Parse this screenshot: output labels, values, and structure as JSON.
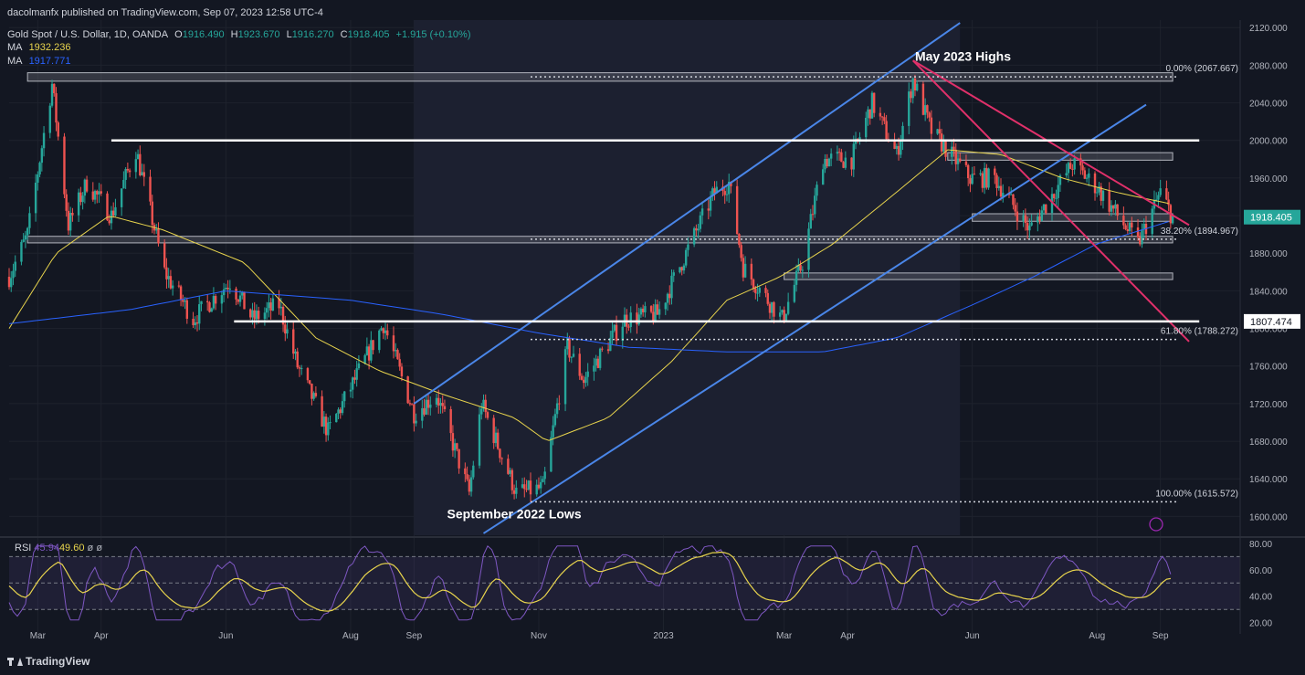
{
  "header": {
    "publisher": "dacolmanfx published on TradingView.com, Sep 07, 2023 12:58 UTC-4",
    "symbol": "Gold Spot / U.S. Dollar, 1D, OANDA",
    "o_label": "O",
    "o": "1916.490",
    "h_label": "H",
    "h": "1923.670",
    "l_label": "L",
    "l": "1916.270",
    "c_label": "C",
    "c": "1918.405",
    "change": "+1.915 (+0.10%)",
    "ma1_label": "MA",
    "ma1_value": "1932.236",
    "ma2_label": "MA",
    "ma2_value": "1917.771"
  },
  "rsi_legend": {
    "label": "RSI",
    "v1": "45.94",
    "v2": "49.60",
    "z1": "ø",
    "z2": "ø"
  },
  "brand": "TradingView",
  "colors": {
    "background": "#131722",
    "up": "#26a69a",
    "down": "#ef5350",
    "ma_fast": "#e8d44d",
    "ma_slow": "#2962ff",
    "channel": "#4a86e8",
    "trendline": "#e0306a",
    "rsi": "#7e57c2",
    "price_tag": "#26a69a",
    "grid": "#1e222d",
    "text": "#b2b5be"
  },
  "chart_data": [
    {
      "type": "candlestick",
      "title": "Gold Spot / U.S. Dollar, 1D, OANDA",
      "x_range": [
        "2022-02-15",
        "2023-10-10"
      ],
      "ylim": [
        1580,
        2128
      ],
      "y_ticks": [
        "1600.000",
        "1640.000",
        "1680.000",
        "1720.000",
        "1760.000",
        "1800.000",
        "1840.000",
        "1880.000",
        "1920.000",
        "1960.000",
        "2000.000",
        "2040.000",
        "2080.000",
        "2120.000"
      ],
      "x_ticks": [
        {
          "date": "2022-03-01",
          "label": "Mar"
        },
        {
          "date": "2022-04-01",
          "label": "Apr"
        },
        {
          "date": "2022-06-01",
          "label": "Jun"
        },
        {
          "date": "2022-08-01",
          "label": "Aug"
        },
        {
          "date": "2022-09-01",
          "label": "Sep"
        },
        {
          "date": "2022-11-01",
          "label": "Nov"
        },
        {
          "date": "2023-01-01",
          "label": "2023"
        },
        {
          "date": "2023-03-01",
          "label": "Mar"
        },
        {
          "date": "2023-04-01",
          "label": "Apr"
        },
        {
          "date": "2023-06-01",
          "label": "Jun"
        },
        {
          "date": "2023-08-01",
          "label": "Aug"
        },
        {
          "date": "2023-09-01",
          "label": "Sep"
        }
      ],
      "price_path": [
        [
          "2022-02-15",
          1855
        ],
        [
          "2022-02-24",
          1900
        ],
        [
          "2022-03-08",
          2060
        ],
        [
          "2022-03-16",
          1910
        ],
        [
          "2022-03-25",
          1955
        ],
        [
          "2022-04-06",
          1920
        ],
        [
          "2022-04-18",
          1990
        ],
        [
          "2022-05-02",
          1860
        ],
        [
          "2022-05-16",
          1810
        ],
        [
          "2022-06-03",
          1850
        ],
        [
          "2022-06-14",
          1810
        ],
        [
          "2022-06-27",
          1825
        ],
        [
          "2022-07-06",
          1760
        ],
        [
          "2022-07-21",
          1690
        ],
        [
          "2022-08-17",
          1805
        ],
        [
          "2022-09-01",
          1710
        ],
        [
          "2022-09-12",
          1730
        ],
        [
          "2022-09-28",
          1625
        ],
        [
          "2022-10-04",
          1720
        ],
        [
          "2022-10-21",
          1625
        ],
        [
          "2022-11-03",
          1630
        ],
        [
          "2022-11-15",
          1780
        ],
        [
          "2022-11-23",
          1745
        ],
        [
          "2022-12-13",
          1810
        ],
        [
          "2022-12-29",
          1815
        ],
        [
          "2023-01-26",
          1945
        ],
        [
          "2023-02-02",
          1955
        ],
        [
          "2023-02-09",
          1865
        ],
        [
          "2023-02-28",
          1810
        ],
        [
          "2023-03-10",
          1870
        ],
        [
          "2023-03-20",
          1980
        ],
        [
          "2023-04-03",
          1980
        ],
        [
          "2023-04-13",
          2040
        ],
        [
          "2023-04-25",
          1985
        ],
        [
          "2023-05-03",
          2065
        ],
        [
          "2023-05-12",
          2010
        ],
        [
          "2023-05-31",
          1960
        ],
        [
          "2023-06-12",
          1960
        ],
        [
          "2023-06-29",
          1905
        ],
        [
          "2023-07-20",
          1975
        ],
        [
          "2023-08-01",
          1950
        ],
        [
          "2023-08-21",
          1890
        ],
        [
          "2023-09-01",
          1945
        ],
        [
          "2023-09-07",
          1918
        ]
      ],
      "moving_averages": [
        {
          "name": "MA",
          "value": "1932.236",
          "color": "#e8d44d",
          "points": [
            [
              "2022-02-15",
              1800
            ],
            [
              "2022-03-10",
              1880
            ],
            [
              "2022-04-05",
              1920
            ],
            [
              "2022-05-01",
              1905
            ],
            [
              "2022-06-10",
              1870
            ],
            [
              "2022-07-15",
              1790
            ],
            [
              "2022-08-15",
              1755
            ],
            [
              "2022-09-15",
              1730
            ],
            [
              "2022-10-20",
              1705
            ],
            [
              "2022-11-05",
              1680
            ],
            [
              "2022-12-05",
              1705
            ],
            [
              "2023-01-05",
              1765
            ],
            [
              "2023-02-01",
              1830
            ],
            [
              "2023-02-27",
              1855
            ],
            [
              "2023-03-25",
              1890
            ],
            [
              "2023-04-25",
              1945
            ],
            [
              "2023-05-20",
              1990
            ],
            [
              "2023-06-15",
              1985
            ],
            [
              "2023-07-15",
              1960
            ],
            [
              "2023-08-10",
              1945
            ],
            [
              "2023-09-07",
              1932
            ]
          ]
        },
        {
          "name": "MA",
          "value": "1917.771",
          "color": "#2962ff",
          "points": [
            [
              "2022-02-15",
              1805
            ],
            [
              "2022-04-15",
              1820
            ],
            [
              "2022-06-01",
              1840
            ],
            [
              "2022-08-01",
              1830
            ],
            [
              "2022-09-15",
              1815
            ],
            [
              "2022-11-01",
              1795
            ],
            [
              "2022-12-15",
              1780
            ],
            [
              "2023-02-01",
              1775
            ],
            [
              "2023-03-20",
              1775
            ],
            [
              "2023-04-25",
              1790
            ],
            [
              "2023-06-01",
              1825
            ],
            [
              "2023-07-01",
              1855
            ],
            [
              "2023-08-01",
              1890
            ],
            [
              "2023-09-07",
              1915
            ]
          ]
        }
      ],
      "current_price_tag": "1918.405",
      "level_tag": "1807.474",
      "fibonacci_levels": [
        {
          "label": "0.00% (2067.667)",
          "value": 2067.667
        },
        {
          "label": "38.20% (1894.967)",
          "value": 1894.967
        },
        {
          "label": "61.80% (1788.272)",
          "value": 1788.272
        },
        {
          "label": "100.00% (1615.572)",
          "value": 1615.572
        }
      ],
      "horizontal_levels": [
        2000,
        1807.474,
        1894.967,
        1918.405,
        1855,
        1982,
        2067.667
      ],
      "annotations": [
        {
          "text": "May 2023 Highs",
          "date": "2023-05-04",
          "price": 2085
        },
        {
          "text": "September 2022 Lows",
          "date": "2022-10-20",
          "price": 1598
        }
      ]
    },
    {
      "type": "line",
      "title": "RSI",
      "ylim": [
        17,
        82
      ],
      "y_ticks": [
        "80.00",
        "60.00",
        "40.00",
        "20.00"
      ],
      "bands": [
        70,
        50,
        30
      ],
      "series": [
        {
          "name": "RSI",
          "value": "45.94",
          "color": "#7e57c2"
        },
        {
          "name": "",
          "value": "49.60",
          "color": "#e8d44d"
        }
      ]
    }
  ]
}
